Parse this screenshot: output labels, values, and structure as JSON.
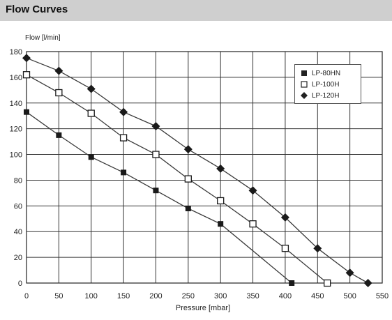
{
  "header": {
    "title": "Flow Curves"
  },
  "chart_data": {
    "type": "line",
    "title": "",
    "ylabel": "Flow [l/min]",
    "xlabel": "Pressure [mbar]",
    "xlim": [
      0,
      550
    ],
    "ylim": [
      0,
      180
    ],
    "x_ticks": [
      0,
      50,
      100,
      150,
      200,
      250,
      300,
      350,
      400,
      450,
      500,
      550
    ],
    "y_ticks": [
      0,
      20,
      40,
      60,
      80,
      100,
      120,
      140,
      160,
      180
    ],
    "grid": true,
    "legend_position": "top-right",
    "series": [
      {
        "name": "LP-80HN",
        "marker": "filled-square",
        "color": "#222222",
        "points": [
          [
            0,
            133
          ],
          [
            50,
            115
          ],
          [
            100,
            98
          ],
          [
            150,
            86
          ],
          [
            200,
            72
          ],
          [
            250,
            58
          ],
          [
            300,
            46
          ],
          [
            410,
            0
          ]
        ]
      },
      {
        "name": "LP-100H",
        "marker": "open-square",
        "color": "#222222",
        "points": [
          [
            0,
            162
          ],
          [
            50,
            148
          ],
          [
            100,
            132
          ],
          [
            150,
            113
          ],
          [
            200,
            100
          ],
          [
            250,
            81
          ],
          [
            300,
            64
          ],
          [
            350,
            46
          ],
          [
            400,
            27
          ],
          [
            465,
            0
          ]
        ]
      },
      {
        "name": "LP-120H",
        "marker": "filled-diamond",
        "color": "#222222",
        "points": [
          [
            0,
            175
          ],
          [
            50,
            165
          ],
          [
            100,
            151
          ],
          [
            150,
            133
          ],
          [
            200,
            122
          ],
          [
            250,
            104
          ],
          [
            300,
            89
          ],
          [
            350,
            72
          ],
          [
            400,
            51
          ],
          [
            450,
            27
          ],
          [
            500,
            8
          ],
          [
            528,
            0
          ]
        ]
      }
    ]
  }
}
